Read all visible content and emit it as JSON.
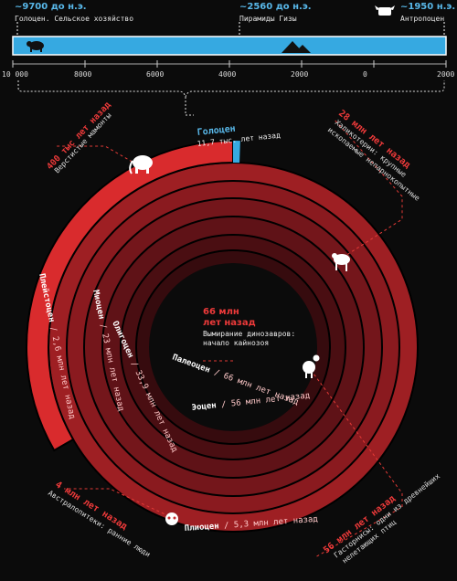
{
  "timeline": {
    "markers": [
      {
        "date": "~9700 до н.э.",
        "desc": "Голоцен. Сельское хозяйство",
        "icon": "bison-icon"
      },
      {
        "date": "~2560 до н.э.",
        "desc": "Пирамиды Гизы",
        "icon": "pyramids-icon"
      },
      {
        "date": "~1950 н.э.",
        "desc": "Антропоцен",
        "icon": "cow-icon"
      }
    ],
    "ticks": [
      "10 000",
      "8000",
      "6000",
      "4000",
      "2000",
      "0",
      "2000"
    ],
    "bar_color": "#36a9e1"
  },
  "holocene": {
    "title": "Голоцен",
    "age": "11,7 тыс. лет назад",
    "color": "#36a9e1"
  },
  "epochs": [
    {
      "name": "Плейстоцен",
      "age": "2,6 млн лет назад"
    },
    {
      "name": "Плиоцен",
      "age": "5,3 млн лет назад"
    },
    {
      "name": "Миоцен",
      "age": "23 млн лет назад"
    },
    {
      "name": "Олигоцен",
      "age": "33,9 млн лет назад"
    },
    {
      "name": "Эоцен",
      "age": "56 млн лет назад"
    },
    {
      "name": "Палеоцен",
      "age": "66 млн лет назад"
    }
  ],
  "center": {
    "title_line1": "66 млн",
    "title_line2": "лет назад",
    "desc_line1": "Вымирание динозавров:",
    "desc_line2": "начало кайнозоя"
  },
  "annotations": {
    "mammoths": {
      "title": "400 тыс лет назад",
      "desc": "Верстистые мамонты"
    },
    "chalicotheres": {
      "title": "28 млн лет назад",
      "desc_line1": "Халикотерии: крупные",
      "desc_line2": "ископаемые непарнокопытные"
    },
    "australopithecus": {
      "title": "4 млн лет назад",
      "desc": "Австралопитеки: ранние люди"
    },
    "gastornis": {
      "title": "56 млн лет назад",
      "desc_line1": "Гасторнисы: одни из древнейших",
      "desc_line2": "нелетающих птиц"
    }
  },
  "colors": {
    "accent_red": "#e23a36",
    "blue": "#36a9e1"
  }
}
